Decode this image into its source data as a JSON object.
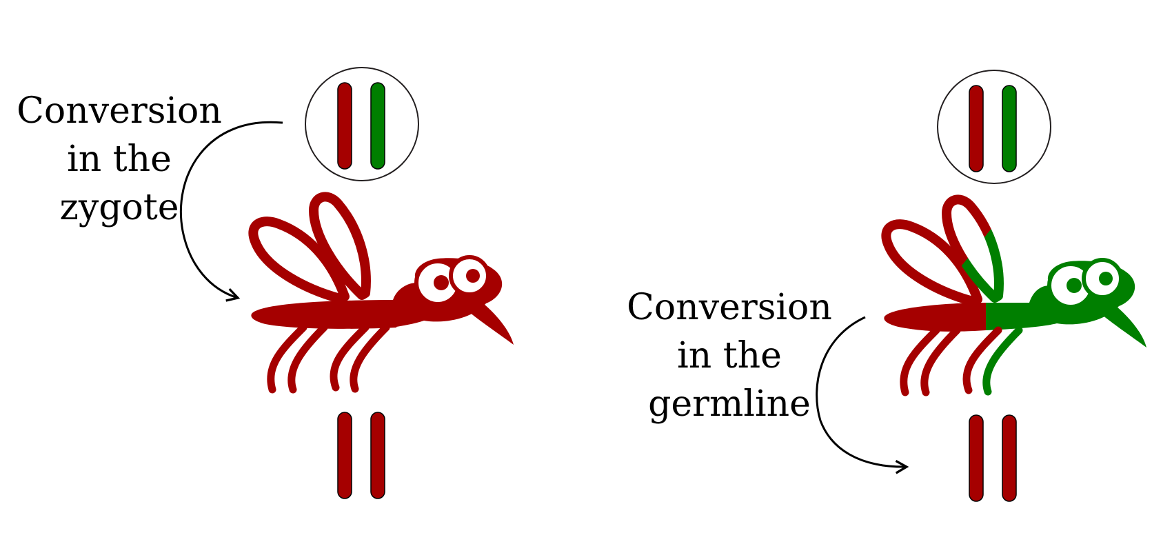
{
  "labels": {
    "zygote": [
      "Conversion",
      "in the",
      "zygote"
    ],
    "germline": [
      "Conversion",
      "in the",
      "germline"
    ]
  },
  "colors": {
    "wild_type": "#a50000",
    "drive": "#007f00",
    "outline": "#000000",
    "cell_stroke": "#231f20"
  },
  "panels": [
    {
      "name": "zygote-conversion",
      "cell_chromosomes": [
        "wild_type",
        "drive"
      ],
      "mosquito_coloring": "all wild_type",
      "gamete_chromosomes": [
        "wild_type",
        "wild_type"
      ]
    },
    {
      "name": "germline-conversion",
      "cell_chromosomes": [
        "wild_type",
        "drive"
      ],
      "mosquito_coloring": "rear wild_type, front drive",
      "gamete_chromosomes": [
        "wild_type",
        "wild_type"
      ]
    }
  ]
}
